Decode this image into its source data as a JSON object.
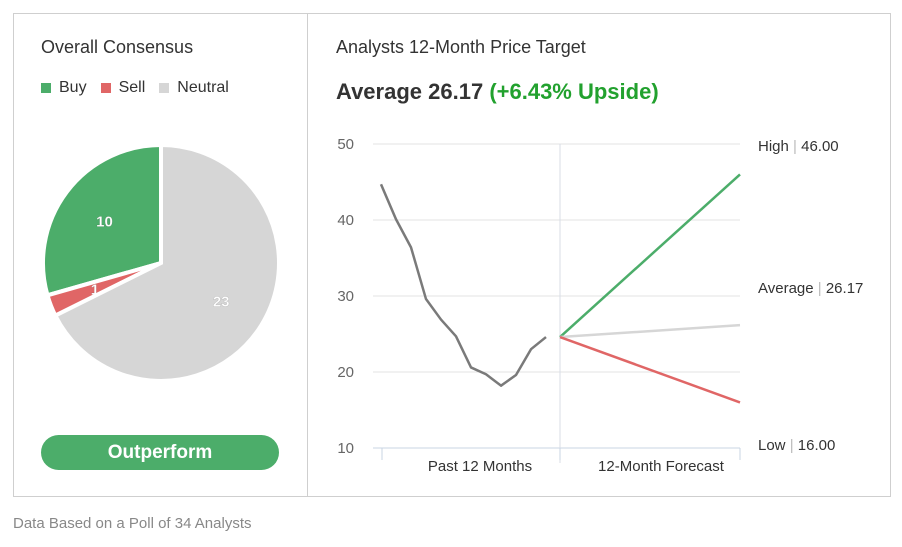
{
  "consensus": {
    "title": "Overall Consensus",
    "legend": [
      {
        "label": "Buy",
        "color": "#4cad6a"
      },
      {
        "label": "Sell",
        "color": "#e06666"
      },
      {
        "label": "Neutral",
        "color": "#d6d6d6"
      }
    ],
    "rating": "Outperform"
  },
  "target": {
    "title": "Analysts 12-Month Price Target",
    "average_prefix": "Average 26.17",
    "upside": "(+6.43% Upside)"
  },
  "footer": "Data Based on a Poll of 34 Analysts",
  "chart_data": [
    {
      "type": "pie",
      "categories": [
        "Buy",
        "Sell",
        "Neutral"
      ],
      "values": [
        10,
        1,
        23
      ],
      "colors": [
        "#4cad6a",
        "#e06666",
        "#d6d6d6"
      ]
    },
    {
      "type": "line",
      "ylim": [
        10,
        50
      ],
      "yticks": [
        50,
        40,
        30,
        20,
        10
      ],
      "xlabels": [
        "Past 12 Months",
        "12-Month Forecast"
      ],
      "history": [
        44.7,
        40.1,
        36.4,
        29.6,
        26.9,
        24.7,
        20.6,
        19.7,
        18.2,
        19.6,
        23.0,
        24.6
      ],
      "forecast_start": 24.6,
      "forecast": [
        {
          "name": "High",
          "value": 46.0,
          "label": "High",
          "value_text": "46.00",
          "color": "#4cad6a"
        },
        {
          "name": "Average",
          "value": 26.17,
          "label": "Average",
          "value_text": "26.17",
          "color": "#d6d6d6"
        },
        {
          "name": "Low",
          "value": 16.0,
          "label": "Low",
          "value_text": "16.00",
          "color": "#e06666"
        }
      ],
      "history_color": "#7a7a7a",
      "grid": true
    }
  ]
}
